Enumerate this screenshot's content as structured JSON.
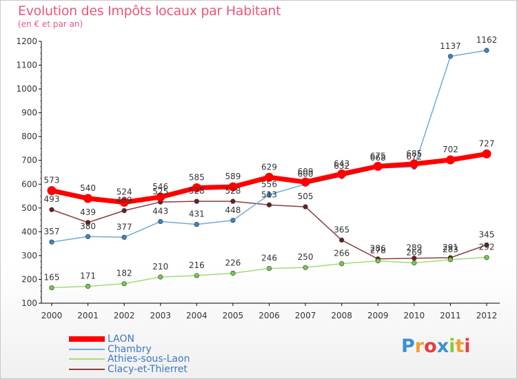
{
  "title": "Evolution des Impôts locaux par Habitant",
  "subtitle": "(en € et par an)",
  "logo": {
    "text": "Proxiti",
    "letters": [
      {
        "char": "P",
        "color": "#3a8fd8"
      },
      {
        "char": "r",
        "color": "#f0a030"
      },
      {
        "char": "o",
        "color": "#e83c3c"
      },
      {
        "char": "x",
        "color": "#3a8fd8"
      },
      {
        "char": "i",
        "color": "#8cc83c"
      },
      {
        "char": "t",
        "color": "#f0a030"
      },
      {
        "char": "i",
        "color": "#e83c3c"
      }
    ]
  },
  "chart_data": {
    "type": "line",
    "x": [
      "2000",
      "2001",
      "2002",
      "2003",
      "2004",
      "2005",
      "2006",
      "2007",
      "2008",
      "2009",
      "2010",
      "2011",
      "2012"
    ],
    "ylim": [
      100,
      1200
    ],
    "yticks": [
      "100",
      "200",
      "300",
      "400",
      "500",
      "600",
      "700",
      "800",
      "900",
      "1000",
      "1100",
      "1200"
    ],
    "grid": false,
    "legend_position": "bottom-left",
    "series": [
      {
        "name": "LAON",
        "color": "#ff0000",
        "marker_color": "#ff0000",
        "width": 7,
        "values": [
          573,
          540,
          524,
          546,
          585,
          589,
          629,
          609,
          643,
          675,
          685,
          702,
          727
        ],
        "labels": [
          "573",
          "540",
          "524",
          "546",
          "585",
          "589",
          "629",
          "609",
          "643",
          "675",
          "685",
          "702",
          "727"
        ]
      },
      {
        "name": "Chambry",
        "color": "#6eaadc",
        "marker_color": "#3a84cc",
        "width": 1.5,
        "values": [
          357,
          380,
          377,
          443,
          431,
          448,
          556,
          600,
          632,
          668,
          672,
          1137,
          1162
        ],
        "labels": [
          "357",
          "380",
          "377",
          "443",
          "431",
          "448",
          "556",
          "600",
          "632",
          "668",
          "672",
          "1137",
          "1162"
        ]
      },
      {
        "name": "Athies-sous-Laon",
        "color": "#a0dc78",
        "marker_color": "#78c850",
        "width": 1.5,
        "values": [
          165,
          171,
          182,
          210,
          216,
          226,
          246,
          250,
          266,
          278,
          269,
          283,
          292
        ],
        "labels": [
          "165",
          "171",
          "182",
          "210",
          "216",
          "226",
          "246",
          "250",
          "266",
          "278",
          "269",
          "283",
          "292"
        ]
      },
      {
        "name": "Clacy-et-Thierret",
        "color": "#8c3c3c",
        "marker_color": "#6e1e1e",
        "width": 1.5,
        "values": [
          493,
          439,
          489,
          525,
          528,
          528,
          513,
          505,
          365,
          286,
          289,
          291,
          345
        ],
        "labels": [
          "493",
          "439",
          "489",
          "525",
          "528",
          "528",
          "513",
          "505",
          "365",
          "286",
          "289",
          "291",
          "345"
        ]
      }
    ]
  }
}
